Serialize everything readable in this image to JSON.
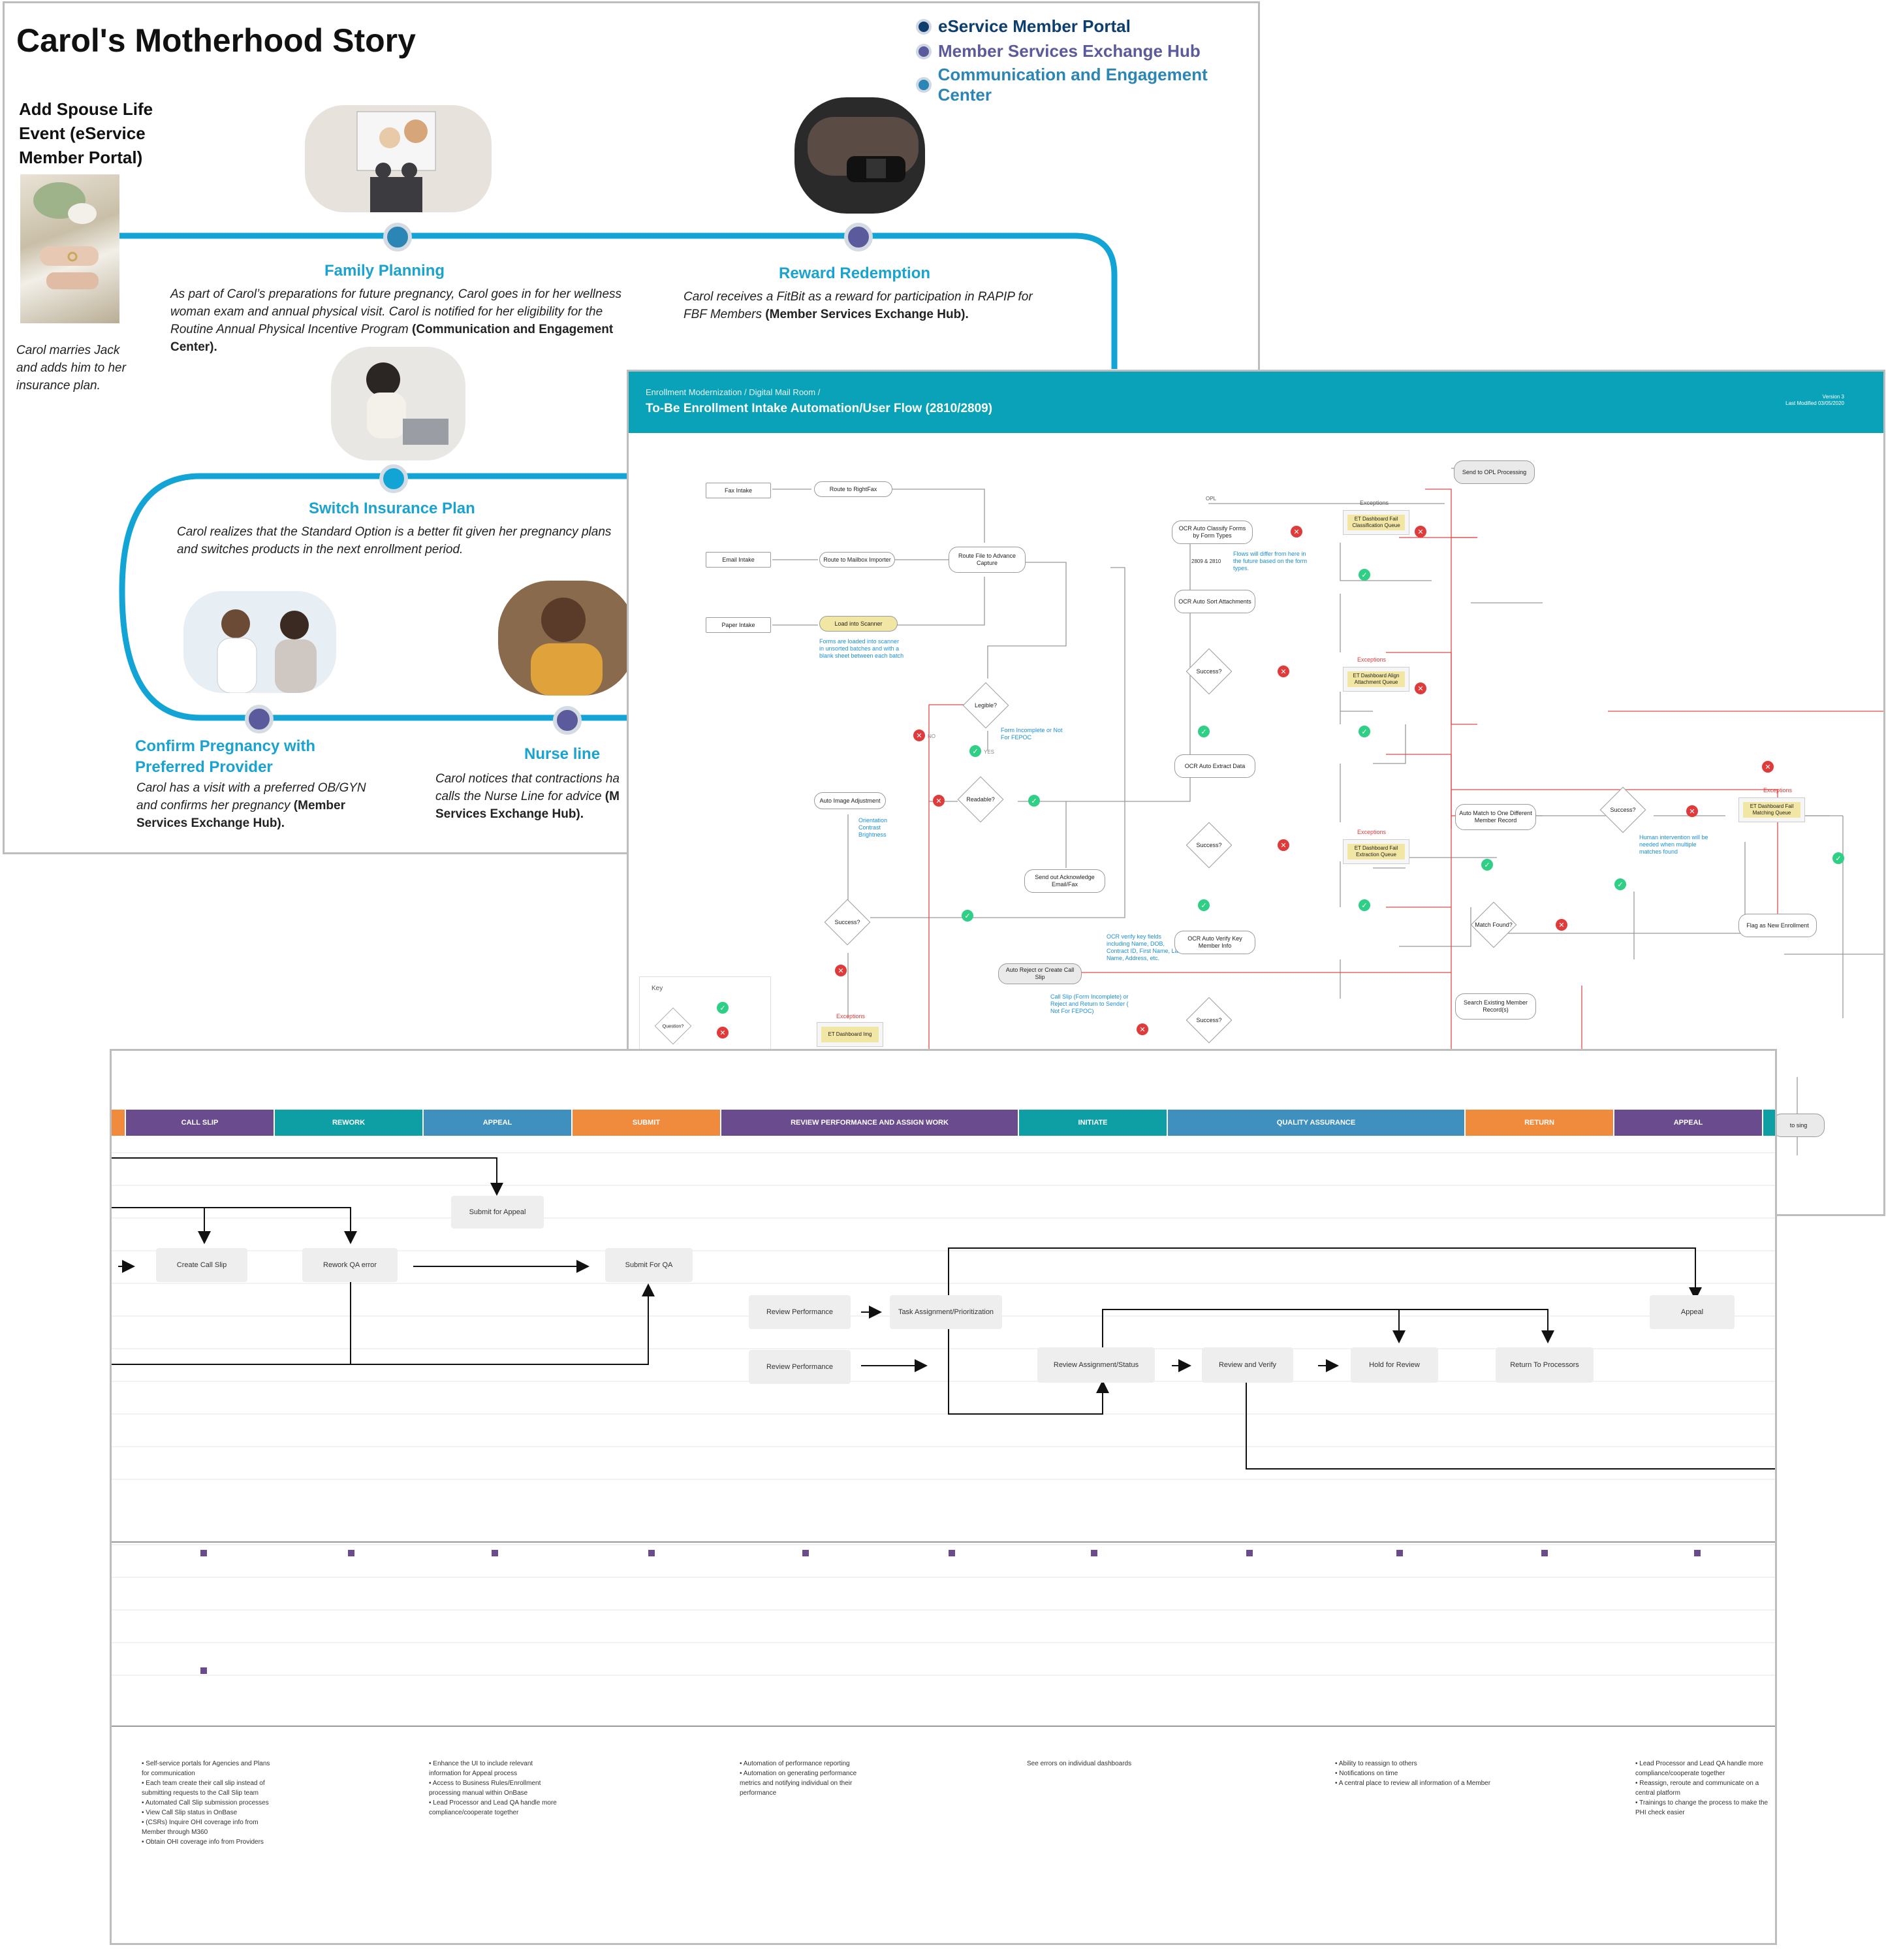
{
  "panel1": {
    "title": "Carol's Motherhood Story",
    "legend": [
      {
        "label": "eService Member Portal",
        "color": "#0d3e6e"
      },
      {
        "label": "Member Services Exchange Hub",
        "color": "#5a5a9c"
      },
      {
        "label": "Communication and Engagement Center",
        "color": "#2b86b5"
      }
    ],
    "add_spouse": {
      "title": "Add Spouse Life Event (eService Member Portal)",
      "text": "Carol marries Jack and adds him to her insurance plan."
    },
    "family_planning": {
      "title": "Family Planning",
      "text": "As part of Carol’s preparations for future pregnancy, Carol goes in for her wellness woman exam and annual physical visit.  Carol is notified for her eligibility for the Routine Annual Physical Incentive Program",
      "bold": "(Communication and Engagement Center)."
    },
    "reward": {
      "title": "Reward Redemption",
      "text": "Carol receives a FitBit as a reward for participation in RAPIP for FBF Members",
      "bold": "(Member Services Exchange Hub)."
    },
    "switch": {
      "title": "Switch Insurance Plan",
      "text": "Carol realizes that the Standard Option is a better fit given her pregnancy plans and switches products in the next enrollment period."
    },
    "confirm": {
      "title": "Confirm Pregnancy with Preferred Provider",
      "text": "Carol has a visit with a preferred OB/GYN and confirms her pregnancy",
      "bold": "(Member Services Exchange Hub)."
    },
    "nurse": {
      "title": "Nurse line",
      "text": "Carol notices that contractions ha calls the Nurse Line for advice",
      "bold": "(M Services Exchange Hub)."
    }
  },
  "panel2": {
    "breadcrumb": "Enrollment Modernization / Digital Mail Room /",
    "title": "To-Be Enrollment Intake Automation/User Flow (2810/2809)",
    "version": "Version 3",
    "modified": "Last Modified 03/05/2020",
    "nodes": {
      "fax": "Fax Intake",
      "email": "Email Intake",
      "paper": "Paper Intake",
      "rightfax": "Route to RightFax",
      "mailbox": "Route to Mailbox Importer",
      "scanner": "Load into Scanner",
      "capture": "Route File to Advance Capture",
      "legible": "Legible?",
      "readable": "Readable?",
      "auto_img": "Auto Image Adjustment",
      "success": "Success?",
      "send_ack": "Send out Acknowledge Email/Fax",
      "auto_reject": "Auto Reject or Create Call Slip",
      "ocr_classify": "OCR Auto Classify Forms by Form Types",
      "ocr_sort": "OCR Auto Sort Attachments",
      "ocr_extract": "OCR Auto Extract Data",
      "ocr_verify": "OCR Auto Verify Key Member Info",
      "send_opl": "Send to OPL Processing",
      "auto_match": "Auto Match to One Different Member Record",
      "match_found": "Match Found?",
      "search": "Search Existing Member Record(s)",
      "flag_new": "Flag as New Enrollment",
      "opl": "OPL",
      "forms_2809": "2809 & 2810",
      "to_proc": "to sing",
      "question": "Question?"
    },
    "exceptions": {
      "label": "Exceptions",
      "classify": "ET Dashboard Fail Classification Queue",
      "align": "ET Dashboard Align Attachment Queue",
      "extract": "ET Dashboard Fail Extraction Queue",
      "matching": "ET Dashboard Fail Matching Queue",
      "img": "ET Dashboard Img"
    },
    "notes": {
      "scanner": "Forms are loaded into scanner in unsorted batches and with a blank sheet between each batch",
      "incomplete": "Form Incomplete or Not For FEPOC",
      "orientation": "Orientation Contrast Brightness",
      "flows": "Flows will differ from here in the future based on the form types.",
      "verify": "OCR verify key fields including Name, DOB, Contract ID, First Name, Last Name, Address, etc.",
      "callslip": "Call Slip (Form Incomplete) or Reject and Return to Sender ( Not For FEPOC)",
      "human": "Human intervention will be needed when multiple matches found"
    },
    "yes": "YES",
    "no": "NO",
    "key": "Key"
  },
  "panel3": {
    "phases": [
      {
        "label": "CALL SLIP",
        "color": "#6a4b8e"
      },
      {
        "label": "REWORK",
        "color": "#0e9fa4"
      },
      {
        "label": "APPEAL",
        "color": "#3f8fbf"
      },
      {
        "label": "SUBMIT",
        "color": "#f08a3c"
      },
      {
        "label": "REVIEW PERFORMANCE AND ASSIGN WORK",
        "color": "#6a4b8e"
      },
      {
        "label": "INITIATE",
        "color": "#0e9fa4"
      },
      {
        "label": "QUALITY ASSURANCE",
        "color": "#3f8fbf"
      },
      {
        "label": "RETURN",
        "color": "#f08a3c"
      },
      {
        "label": "APPEAL",
        "color": "#6a4b8e"
      }
    ],
    "boxes": {
      "submit_appeal": "Submit for Appeal",
      "create_call_slip": "Create Call Slip",
      "rework_qa": "Rework QA error",
      "submit_qa": "Submit For QA",
      "review_perf_1": "Review Performance",
      "review_perf_2": "Review Performance",
      "task_assign": "Task Assignment/Prioritization",
      "review_assign": "Review Assignment/Status",
      "review_verify": "Review and Verify",
      "hold_review": "Hold for Review",
      "return_proc": "Return To Processors",
      "appeal": "Appeal"
    },
    "notes": [
      "• Self-service portals for Agencies and Plans for communication\n• Each team create their call slip instead of submitting requests to the Call Slip team\n• Automated Call Slip submission processes\n• View Call Slip status in OnBase\n• (CSRs) Inquire OHI coverage info from Member through M360\n• Obtain OHI coverage info from Providers",
      "• Enhance the UI to include relevant information for Appeal process\n• Access to Business Rules/Enrollment processing manual within OnBase\n• Lead Processor and Lead QA handle more compliance/cooperate together",
      "• Automation of performance reporting\n• Automation on generating  performance metrics and notifying individual on their performance",
      "See errors on individual dashboards",
      "• Ability to reassign to others\n• Notifications on time\n• A central place to review all information of a Member",
      "• Lead Processor and Lead QA handle more compliance/cooperate together\n• Reassign, reroute and communicate on a central platform\n• Trainings to change the process to make the PHI check easier"
    ]
  }
}
